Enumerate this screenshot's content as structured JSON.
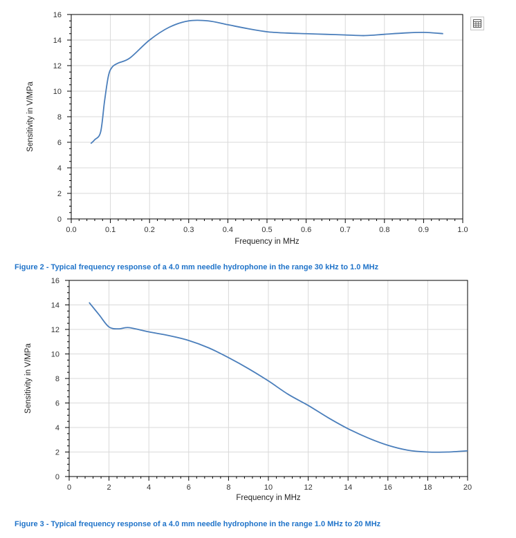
{
  "icons": {
    "export": "spreadsheet-icon"
  },
  "colors": {
    "line": "#4a7ebb",
    "caption": "#1f73c9",
    "grid": "#d9d9d9"
  },
  "chart_data": [
    {
      "type": "line",
      "xlabel": "Frequency in MHz",
      "ylabel": "Sensitivity in V/MPa",
      "xlim": [
        0.0,
        1.0
      ],
      "ylim": [
        0,
        16
      ],
      "x_ticks": [
        0.0,
        0.1,
        0.2,
        0.3,
        0.4,
        0.5,
        0.6,
        0.7,
        0.8,
        0.9,
        1.0
      ],
      "x_tick_labels": [
        "0.0",
        "0.1",
        "0.2",
        "0.3",
        "0.4",
        "0.5",
        "0.6",
        "0.7",
        "0.8",
        "0.9",
        "1.0"
      ],
      "y_ticks": [
        0,
        2,
        4,
        6,
        8,
        10,
        12,
        14,
        16
      ],
      "y_tick_labels": [
        "0",
        "2",
        "4",
        "6",
        "8",
        "10",
        "12",
        "14",
        "16"
      ],
      "grid": true,
      "caption": "Figure 2 - Typical frequency response of a 4.0 mm needle hydrophone in the range 30 kHz to 1.0 MHz",
      "series": [
        {
          "name": "Sensitivity",
          "x": [
            0.05,
            0.06,
            0.075,
            0.085,
            0.095,
            0.105,
            0.12,
            0.15,
            0.2,
            0.25,
            0.3,
            0.35,
            0.4,
            0.45,
            0.5,
            0.55,
            0.6,
            0.65,
            0.7,
            0.75,
            0.8,
            0.85,
            0.9,
            0.95
          ],
          "y": [
            5.9,
            6.2,
            6.8,
            9.2,
            11.2,
            11.9,
            12.2,
            12.6,
            14.0,
            15.0,
            15.5,
            15.5,
            15.2,
            14.9,
            14.65,
            14.55,
            14.5,
            14.45,
            14.4,
            14.35,
            14.45,
            14.55,
            14.6,
            14.5
          ]
        }
      ]
    },
    {
      "type": "line",
      "xlabel": "Frequency in MHz",
      "ylabel": "Sensitivity in V/MPa",
      "xlim": [
        0,
        20
      ],
      "ylim": [
        0,
        16
      ],
      "x_ticks": [
        0,
        2,
        4,
        6,
        8,
        10,
        12,
        14,
        16,
        18,
        20
      ],
      "x_tick_labels": [
        "0",
        "2",
        "4",
        "6",
        "8",
        "10",
        "12",
        "14",
        "16",
        "18",
        "20"
      ],
      "y_ticks": [
        0,
        2,
        4,
        6,
        8,
        10,
        12,
        14,
        16
      ],
      "y_tick_labels": [
        "0",
        "2",
        "4",
        "6",
        "8",
        "10",
        "12",
        "14",
        "16"
      ],
      "grid": true,
      "caption": "Figure 3 - Typical frequency response of a 4.0 mm needle hydrophone in the range 1.0 MHz to 20 MHz",
      "series": [
        {
          "name": "Sensitivity",
          "x": [
            1,
            1.5,
            2,
            2.5,
            3,
            4,
            5,
            6,
            7,
            8,
            9,
            10,
            11,
            12,
            13,
            14,
            15,
            16,
            17,
            18,
            19,
            20
          ],
          "y": [
            14.2,
            13.2,
            12.2,
            12.05,
            12.15,
            11.8,
            11.5,
            11.1,
            10.5,
            9.7,
            8.8,
            7.8,
            6.7,
            5.8,
            4.8,
            3.9,
            3.15,
            2.55,
            2.15,
            2.0,
            2.0,
            2.1
          ]
        }
      ]
    }
  ]
}
